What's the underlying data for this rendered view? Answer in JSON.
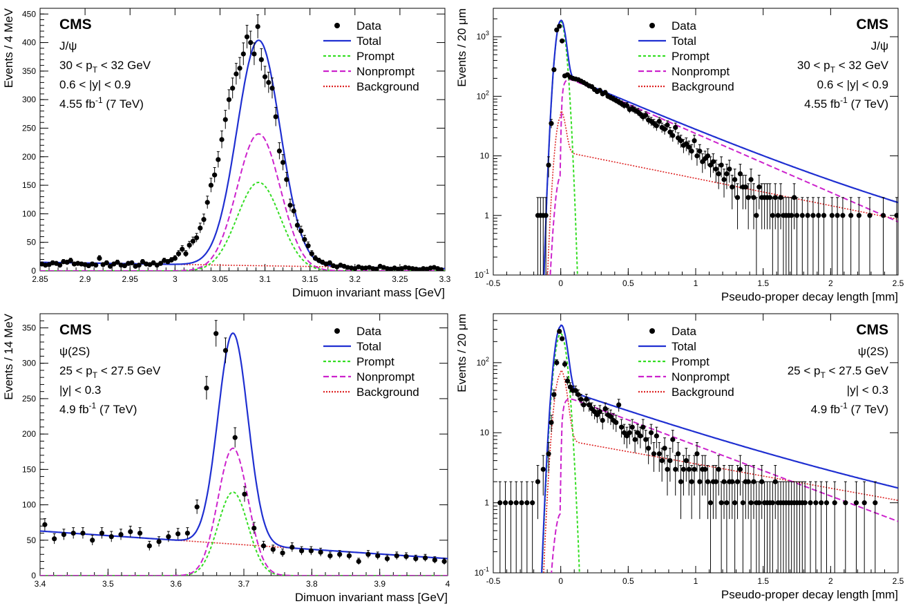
{
  "colors": {
    "data": "#000000",
    "total": "#1f2fd1",
    "prompt": "#33dd22",
    "nonprompt": "#cc22cc",
    "background": "#dd2222"
  },
  "legend": {
    "data": "Data",
    "total": "Total",
    "prompt": "Prompt",
    "nonprompt": "Nonprompt",
    "background": "Background"
  },
  "chart_data": [
    {
      "type": "line",
      "panel": "top-left",
      "xlabel": "Dimuon invariant mass [GeV]",
      "ylabel": "Events / 4 MeV",
      "xlim": [
        2.85,
        3.3
      ],
      "ylim": [
        0,
        460
      ],
      "log_y": false,
      "xticks": [
        "2.85",
        "2.9",
        "2.95",
        "3",
        "3.05",
        "3.1",
        "3.15",
        "3.2",
        "3.25",
        "3.3"
      ],
      "yticks": [
        "0",
        "50",
        "100",
        "150",
        "200",
        "250",
        "300",
        "350",
        "400",
        "450"
      ],
      "labels": {
        "experiment": "CMS",
        "particle": "J/ψ",
        "pt": "30 < p_T < 32 GeV",
        "rapidity": "0.6 < |y| < 0.9",
        "lumi": "4.55 fb^-1 (7 TeV)"
      },
      "legend_position": "top-right",
      "label_position": "top-left",
      "curves": {
        "kind": "mass",
        "mean": 3.093,
        "sigma": 0.024,
        "total_peak": 395,
        "prompt_peak": 155,
        "nonprompt_peak": 240,
        "bkg_start": 15,
        "bkg_end": 4
      },
      "data_points": {
        "x": [
          2.852,
          2.856,
          2.86,
          2.864,
          2.868,
          2.872,
          2.876,
          2.88,
          2.884,
          2.888,
          2.892,
          2.896,
          2.9,
          2.904,
          2.908,
          2.912,
          2.916,
          2.92,
          2.924,
          2.928,
          2.932,
          2.936,
          2.94,
          2.944,
          2.948,
          2.952,
          2.956,
          2.96,
          2.964,
          2.968,
          2.972,
          2.976,
          2.98,
          2.984,
          2.988,
          2.992,
          2.996,
          3.0,
          3.004,
          3.008,
          3.012,
          3.016,
          3.02,
          3.024,
          3.028,
          3.032,
          3.036,
          3.04,
          3.044,
          3.048,
          3.052,
          3.056,
          3.06,
          3.064,
          3.068,
          3.072,
          3.076,
          3.08,
          3.084,
          3.088,
          3.092,
          3.096,
          3.1,
          3.104,
          3.108,
          3.112,
          3.116,
          3.12,
          3.124,
          3.128,
          3.132,
          3.136,
          3.14,
          3.144,
          3.148,
          3.152,
          3.156,
          3.16,
          3.164,
          3.168,
          3.172,
          3.176,
          3.18,
          3.184,
          3.188,
          3.192,
          3.196,
          3.2,
          3.204,
          3.208,
          3.212,
          3.216,
          3.22,
          3.224,
          3.228,
          3.232,
          3.236,
          3.24,
          3.244,
          3.248,
          3.252,
          3.256,
          3.26,
          3.264,
          3.268,
          3.272,
          3.276,
          3.28,
          3.284,
          3.288,
          3.292,
          3.296
        ],
        "y": [
          12,
          10,
          11,
          14,
          13,
          10,
          16,
          15,
          18,
          12,
          13,
          12,
          11,
          9,
          12,
          10,
          22,
          11,
          14,
          8,
          12,
          15,
          10,
          9,
          13,
          14,
          8,
          10,
          16,
          12,
          11,
          14,
          10,
          13,
          18,
          16,
          19,
          22,
          30,
          38,
          30,
          45,
          52,
          58,
          75,
          90,
          120,
          150,
          168,
          195,
          230,
          265,
          300,
          320,
          345,
          355,
          380,
          410,
          400,
          380,
          428,
          370,
          340,
          330,
          320,
          270,
          210,
          190,
          160,
          115,
          105,
          80,
          70,
          55,
          44,
          30,
          22,
          18,
          15,
          12,
          14,
          9,
          7,
          10,
          8,
          6,
          5,
          4,
          7,
          5,
          5,
          6,
          4,
          3,
          8,
          6,
          4,
          3,
          5,
          3,
          4,
          6,
          5,
          4,
          3,
          2,
          4,
          3,
          5,
          6,
          4,
          2
        ]
      }
    },
    {
      "type": "line",
      "panel": "top-right",
      "xlabel": "Pseudo-proper decay length [mm]",
      "ylabel": "Events / 20 μm",
      "xlim": [
        -0.5,
        2.5
      ],
      "ylim": [
        0.1,
        3000
      ],
      "log_y": true,
      "xticks": [
        "-0.5",
        "0",
        "0.5",
        "1",
        "1.5",
        "2",
        "2.5"
      ],
      "yticks": [
        "10^-1",
        "1",
        "10",
        "10^2",
        "10^3"
      ],
      "labels": {
        "experiment": "CMS",
        "particle": "J/ψ",
        "pt": "30 < p_T < 32 GeV",
        "rapidity": "0.6 < |y| < 0.9",
        "lumi": "4.55 fb^-1 (7 TeV)"
      },
      "legend_position": "top-left",
      "label_position": "top-right",
      "curves": {
        "kind": "decay",
        "prompt_peak": 1800,
        "prompt_sigma": 0.028,
        "np_start": 230,
        "np_slope": 0.44,
        "bkg_peak": 45,
        "bkg_tail_start": 12,
        "bkg_tail_slope": 0.95
      },
      "data_points": {
        "x": [
          -0.17,
          -0.15,
          -0.13,
          -0.11,
          -0.09,
          -0.07,
          -0.05,
          -0.03,
          -0.01,
          0.01,
          0.03,
          0.05,
          0.07,
          0.09,
          0.11,
          0.13,
          0.15,
          0.17,
          0.19,
          0.21,
          0.23,
          0.25,
          0.27,
          0.29,
          0.31,
          0.33,
          0.35,
          0.37,
          0.39,
          0.41,
          0.43,
          0.45,
          0.47,
          0.49,
          0.51,
          0.53,
          0.55,
          0.57,
          0.59,
          0.61,
          0.63,
          0.65,
          0.67,
          0.69,
          0.71,
          0.73,
          0.75,
          0.77,
          0.79,
          0.81,
          0.83,
          0.85,
          0.87,
          0.89,
          0.91,
          0.93,
          0.95,
          0.97,
          0.99,
          1.01,
          1.03,
          1.05,
          1.07,
          1.09,
          1.11,
          1.13,
          1.15,
          1.17,
          1.19,
          1.21,
          1.23,
          1.25,
          1.27,
          1.29,
          1.31,
          1.33,
          1.35,
          1.37,
          1.39,
          1.41,
          1.43,
          1.45,
          1.47,
          1.49,
          1.51,
          1.53,
          1.55,
          1.57,
          1.59,
          1.61,
          1.63,
          1.65,
          1.67,
          1.69,
          1.71,
          1.73,
          1.75,
          1.79,
          1.83,
          1.87,
          1.91,
          1.95,
          2.01,
          2.05,
          2.09,
          2.15,
          2.21,
          2.29,
          2.39,
          2.49
        ],
        "y": [
          1,
          1,
          1,
          1,
          7,
          35,
          280,
          1300,
          1500,
          850,
          220,
          230,
          210,
          200,
          195,
          190,
          180,
          170,
          160,
          150,
          145,
          130,
          120,
          125,
          110,
          115,
          100,
          95,
          90,
          85,
          80,
          75,
          70,
          70,
          60,
          62,
          58,
          55,
          50,
          45,
          48,
          40,
          38,
          35,
          32,
          38,
          30,
          28,
          33,
          25,
          22,
          30,
          20,
          18,
          15,
          16,
          14,
          12,
          18,
          10,
          12,
          8,
          9,
          10,
          7,
          8,
          6,
          5,
          7,
          4,
          5,
          6,
          3,
          4,
          2,
          5,
          3,
          3,
          2,
          4,
          2,
          1,
          3,
          2,
          2,
          2,
          2,
          1,
          2,
          1,
          2,
          1,
          1,
          1,
          1,
          2,
          1,
          1,
          1,
          1,
          1,
          1,
          1,
          1,
          1,
          1,
          1,
          1,
          1,
          1
        ]
      }
    },
    {
      "type": "line",
      "panel": "bottom-left",
      "xlabel": "Dimuon invariant mass [GeV]",
      "ylabel": "Events / 14 MeV",
      "xlim": [
        3.4,
        4.0
      ],
      "ylim": [
        0,
        370
      ],
      "log_y": false,
      "xticks": [
        "3.4",
        "3.5",
        "3.6",
        "3.7",
        "3.8",
        "3.9",
        "4"
      ],
      "yticks": [
        "0",
        "50",
        "100",
        "150",
        "200",
        "250",
        "300",
        "350"
      ],
      "labels": {
        "experiment": "CMS",
        "particle": "ψ(2S)",
        "pt": "25 < p_T < 27.5 GeV",
        "rapidity": "|y| < 0.3",
        "lumi": "4.9 fb^-1 (7 TeV)"
      },
      "legend_position": "top-right",
      "label_position": "top-left",
      "curves": {
        "kind": "mass",
        "mean": 3.684,
        "sigma": 0.022,
        "total_peak": 290,
        "prompt_peak": 118,
        "nonprompt_peak": 180,
        "bkg_start": 63,
        "bkg_end": 24
      },
      "data_points": {
        "x": [
          3.407,
          3.421,
          3.435,
          3.449,
          3.463,
          3.477,
          3.491,
          3.505,
          3.519,
          3.533,
          3.547,
          3.561,
          3.575,
          3.589,
          3.603,
          3.617,
          3.631,
          3.645,
          3.659,
          3.673,
          3.687,
          3.701,
          3.715,
          3.729,
          3.743,
          3.757,
          3.771,
          3.785,
          3.799,
          3.813,
          3.827,
          3.841,
          3.855,
          3.869,
          3.883,
          3.897,
          3.911,
          3.925,
          3.939,
          3.953,
          3.967,
          3.981,
          3.995
        ],
        "y": [
          72,
          52,
          58,
          60,
          60,
          50,
          60,
          55,
          58,
          62,
          60,
          42,
          48,
          55,
          59,
          60,
          97,
          265,
          342,
          318,
          195,
          115,
          67,
          42,
          37,
          32,
          40,
          35,
          35,
          33,
          28,
          30,
          28,
          20,
          30,
          28,
          24,
          28,
          27,
          24,
          25,
          22,
          20
        ]
      }
    },
    {
      "type": "line",
      "panel": "bottom-right",
      "xlabel": "Pseudo-proper decay length [mm]",
      "ylabel": "Events / 20 μm",
      "xlim": [
        -0.5,
        2.5
      ],
      "ylim": [
        0.1,
        500
      ],
      "log_y": true,
      "xticks": [
        "-0.5",
        "0",
        "0.5",
        "1",
        "1.5",
        "2",
        "2.5"
      ],
      "yticks": [
        "10^-1",
        "1",
        "10",
        "10^2"
      ],
      "labels": {
        "experiment": "CMS",
        "particle": "ψ(2S)",
        "pt": "25 < p_T < 27.5 GeV",
        "rapidity": "|y| < 0.3",
        "lumi": "4.9 fb^-1 (7 TeV)"
      },
      "legend_position": "top-left",
      "label_position": "top-right",
      "curves": {
        "kind": "decay",
        "prompt_peak": 260,
        "prompt_sigma": 0.035,
        "np_start": 35,
        "np_slope": 0.6,
        "bkg_peak": 70,
        "bkg_tail_start": 8,
        "bkg_tail_slope": 1.25
      },
      "data_points": {
        "x": [
          -0.45,
          -0.41,
          -0.37,
          -0.33,
          -0.29,
          -0.25,
          -0.21,
          -0.17,
          -0.13,
          -0.09,
          -0.07,
          -0.05,
          -0.03,
          -0.01,
          0.01,
          0.03,
          0.05,
          0.07,
          0.09,
          0.11,
          0.13,
          0.15,
          0.17,
          0.19,
          0.21,
          0.23,
          0.25,
          0.27,
          0.29,
          0.31,
          0.33,
          0.35,
          0.37,
          0.39,
          0.41,
          0.43,
          0.45,
          0.47,
          0.49,
          0.51,
          0.53,
          0.55,
          0.57,
          0.59,
          0.61,
          0.63,
          0.65,
          0.67,
          0.69,
          0.71,
          0.73,
          0.75,
          0.77,
          0.79,
          0.81,
          0.83,
          0.85,
          0.87,
          0.89,
          0.91,
          0.93,
          0.95,
          0.97,
          0.99,
          1.01,
          1.03,
          1.05,
          1.07,
          1.09,
          1.11,
          1.13,
          1.15,
          1.17,
          1.19,
          1.21,
          1.23,
          1.25,
          1.27,
          1.29,
          1.31,
          1.33,
          1.35,
          1.37,
          1.39,
          1.41,
          1.43,
          1.45,
          1.47,
          1.49,
          1.51,
          1.53,
          1.55,
          1.57,
          1.59,
          1.61,
          1.63,
          1.65,
          1.67,
          1.69,
          1.71,
          1.73,
          1.75,
          1.77,
          1.79,
          1.81,
          1.85,
          1.89,
          1.93,
          1.97,
          2.03,
          2.11,
          2.19,
          2.25,
          2.33
        ],
        "y": [
          1,
          1,
          1,
          1,
          1,
          1,
          1,
          2,
          3,
          5,
          14,
          35,
          100,
          280,
          220,
          95,
          55,
          45,
          40,
          40,
          35,
          30,
          25,
          30,
          25,
          22,
          20,
          18,
          20,
          15,
          22,
          18,
          17,
          15,
          14,
          25,
          12,
          10,
          9,
          10,
          12,
          8,
          10,
          9,
          12,
          8,
          6,
          10,
          5,
          9,
          5,
          4,
          6,
          3,
          4,
          8,
          3,
          5,
          2,
          3,
          4,
          3,
          2,
          3,
          5,
          2,
          3,
          3,
          2,
          1,
          2,
          2,
          3,
          1,
          2,
          1,
          2,
          2,
          1,
          2,
          3,
          1,
          2,
          2,
          1,
          2,
          1,
          1,
          2,
          1,
          1,
          1,
          1,
          2,
          1,
          1,
          1,
          1,
          1,
          1,
          1,
          1,
          1,
          1,
          1,
          1,
          1,
          1,
          1,
          1,
          1,
          1,
          1,
          1
        ]
      }
    }
  ]
}
